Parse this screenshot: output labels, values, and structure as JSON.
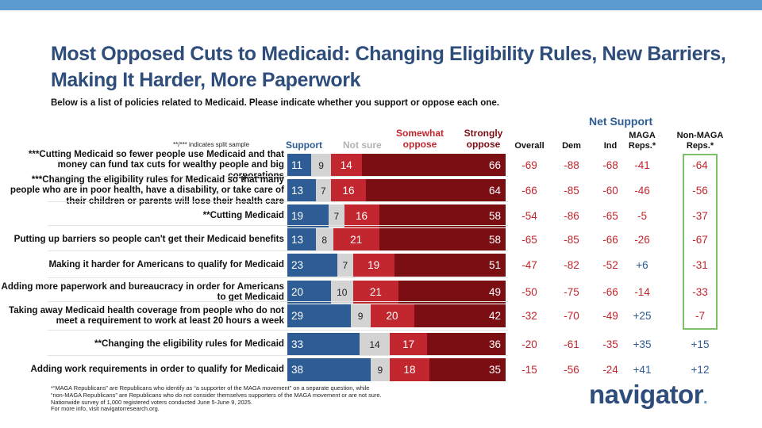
{
  "title": "Most Opposed Cuts to Medicaid: Changing Eligibility Rules, New Barriers, Making It Harder, More Paperwork",
  "subtitle": "Below is a list of policies related to Medicaid. Please indicate whether you support or oppose each one.",
  "split_note": "**/*** indicates split sample",
  "headers": {
    "support": "Support",
    "not_sure": "Not sure",
    "somewhat_oppose": "Somewhat oppose",
    "strongly_oppose": "Strongly oppose",
    "net_support": "Net Support",
    "overall": "Overall",
    "dem": "Dem",
    "ind": "Ind",
    "maga": "MAGA Reps.*",
    "non_maga": "Non-MAGA Reps.*"
  },
  "colors": {
    "support": "#2e5c95",
    "not_sure": "#d3d3d3",
    "somewhat_oppose": "#c2262e",
    "strongly_oppose": "#7b0e13",
    "net_negative": "#c0252d",
    "net_positive": "#2e5c95",
    "highlight_box": "#7ec06a",
    "title": "#2e4d7b",
    "top_bar": "#5b9bd0"
  },
  "chart_data": {
    "type": "bar",
    "stacked": true,
    "orientation": "horizontal",
    "title": "Most Opposed Cuts to Medicaid: Changing Eligibility Rules, New Barriers, Making It Harder, More Paperwork",
    "categories": [
      "***Cutting Medicaid so fewer people use Medicaid and that money can fund tax cuts for wealthy people and big corporations",
      "***Changing the eligibility rules for Medicaid so that many people who are in poor health, have a disability, or take care of their children or parents will lose their health care",
      "**Cutting Medicaid",
      "Putting up barriers so people can't get their Medicaid benefits",
      "Making it harder for Americans to qualify for Medicaid",
      "Adding more paperwork and bureaucracy in order for Americans to get Medicaid",
      "Taking away Medicaid health coverage from people who do not meet a requirement to work at least 20 hours a week",
      "**Changing the eligibility rules for Medicaid",
      "Adding work requirements in order to qualify for Medicaid"
    ],
    "series": [
      {
        "name": "Support",
        "values": [
          11,
          13,
          19,
          13,
          23,
          20,
          29,
          33,
          38
        ]
      },
      {
        "name": "Not sure",
        "values": [
          9,
          7,
          7,
          8,
          7,
          10,
          9,
          14,
          9
        ]
      },
      {
        "name": "Somewhat oppose",
        "values": [
          14,
          16,
          16,
          21,
          19,
          21,
          20,
          17,
          18
        ]
      },
      {
        "name": "Strongly oppose",
        "values": [
          66,
          64,
          58,
          58,
          51,
          49,
          42,
          36,
          35
        ]
      }
    ],
    "net_support_columns": [
      "Overall",
      "Dem",
      "Ind",
      "MAGA Reps.*",
      "Non-MAGA Reps.*"
    ],
    "net_support": [
      [
        "-69",
        "-88",
        "-68",
        "-41",
        "-64"
      ],
      [
        "-66",
        "-85",
        "-60",
        "-46",
        "-56"
      ],
      [
        "-54",
        "-86",
        "-65",
        "-5",
        "-37"
      ],
      [
        "-65",
        "-85",
        "-66",
        "-26",
        "-67"
      ],
      [
        "-47",
        "-82",
        "-52",
        "+6",
        "-31"
      ],
      [
        "-50",
        "-75",
        "-66",
        "-14",
        "-33"
      ],
      [
        "-32",
        "-70",
        "-49",
        "+25",
        "-7"
      ],
      [
        "-20",
        "-61",
        "-35",
        "+35",
        "+15"
      ],
      [
        "-15",
        "-56",
        "-24",
        "+41",
        "+12"
      ]
    ],
    "xlim": [
      0,
      100
    ]
  },
  "footnote": {
    "line1": "*“MAGA Republicans” are Republicans who identify as “a supporter of the MAGA movement” on a separate question, while “non-MAGA Republicans” are Republicans who do not consider themselves supporters of the MAGA movement or are not sure.",
    "line2": "Nationwide survey of 1,000 registered voters conducted June 5-June 9, 2025.",
    "line3": "For more info, visit navigatorresearch.org."
  },
  "logo": {
    "text": "navigator",
    "dot": "."
  }
}
